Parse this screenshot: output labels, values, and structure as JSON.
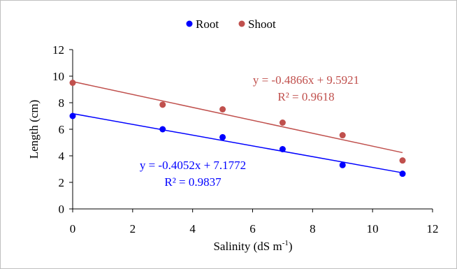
{
  "chart_data": {
    "type": "scatter",
    "xlabel": "Salinity (dS m",
    "xlabel_sup": "-1",
    "xlabel_end": ")",
    "ylabel": "Length (cm)",
    "xlim": [
      0,
      12
    ],
    "ylim": [
      0,
      12
    ],
    "x_ticks": [
      "0",
      "2",
      "4",
      "6",
      "8",
      "10",
      "12"
    ],
    "y_ticks": [
      "0",
      "2",
      "4",
      "6",
      "8",
      "10",
      "12"
    ],
    "grid": false,
    "legend_position": "top-center",
    "series": [
      {
        "name": "Root",
        "color": "#0000ff",
        "points": [
          [
            0,
            7.0
          ],
          [
            3,
            6.0
          ],
          [
            5,
            5.4
          ],
          [
            7,
            4.5
          ],
          [
            9,
            3.3
          ],
          [
            11,
            2.65
          ]
        ],
        "trendline": {
          "slope": -0.4052,
          "intercept": 7.1772
        },
        "equation": "y = -0.4052x + 7.1772",
        "r2": "R² = 0.9837"
      },
      {
        "name": "Shoot",
        "color": "#c0504d",
        "points": [
          [
            0,
            9.5
          ],
          [
            3,
            7.85
          ],
          [
            5,
            7.5
          ],
          [
            7,
            6.5
          ],
          [
            9,
            5.55
          ],
          [
            11,
            3.65
          ]
        ],
        "trendline": {
          "slope": -0.4866,
          "intercept": 9.5921
        },
        "equation": "y = -0.4866x + 9.5921",
        "r2": "R² = 0.9618"
      }
    ]
  }
}
